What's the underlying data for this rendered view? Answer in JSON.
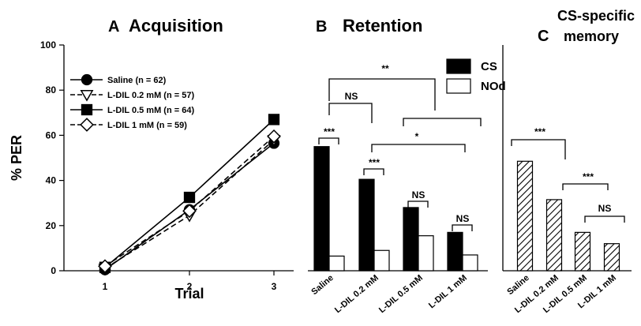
{
  "panels": {
    "a": {
      "letter": "A",
      "title": "Acquisition"
    },
    "b": {
      "letter": "B",
      "title": "Retention"
    },
    "c": {
      "letter": "C",
      "title_line1": "CS-specific",
      "title_line2": "memory"
    }
  },
  "chart_data": [
    {
      "id": "acquisition",
      "type": "line",
      "title": "Acquisition",
      "xlabel": "Trial",
      "ylabel": "% PER",
      "x": [
        1,
        2,
        3
      ],
      "ylim": [
        0,
        100
      ],
      "yticks": [
        0,
        20,
        40,
        60,
        80,
        100
      ],
      "legend_position": "top-left",
      "series": [
        {
          "name": "Saline (n = 62)",
          "values": [
            0.5,
            27,
            56.5
          ],
          "marker": "circle-filled",
          "dash": "solid"
        },
        {
          "name": "L-DIL 0.2 mM (n = 57)",
          "values": [
            1,
            24.5,
            58
          ],
          "marker": "triangle-down-open",
          "dash": "dashed"
        },
        {
          "name": "L-DIL 0.5 mM (n = 64)",
          "values": [
            1.5,
            32.5,
            67
          ],
          "marker": "square-filled",
          "dash": "solid"
        },
        {
          "name": "L-DIL 1 mM (n = 59)",
          "values": [
            2,
            26.5,
            59.5
          ],
          "marker": "diamond-open",
          "dash": "dashed"
        }
      ]
    },
    {
      "id": "retention",
      "type": "bar",
      "title": "Retention",
      "ylim": [
        0,
        100
      ],
      "categories": [
        "Saline",
        "L-DIL 0.2 mM",
        "L-DIL 0.5 mM",
        "L-DIL 1 mM"
      ],
      "legend_position": "top-right",
      "series": [
        {
          "name": "CS",
          "values": [
            55,
            40.5,
            28,
            17
          ],
          "color": "#000000"
        },
        {
          "name": "NOd",
          "values": [
            6.5,
            9,
            15.5,
            7
          ],
          "color": "#ffffff"
        }
      ],
      "annotations": [
        {
          "label": "***",
          "between": [
            "Saline CS",
            "Saline NOd"
          ]
        },
        {
          "label": "***",
          "between": [
            "L-DIL 0.2 mM CS",
            "L-DIL 0.2 mM NOd"
          ]
        },
        {
          "label": "NS",
          "between": [
            "L-DIL 0.5 mM CS",
            "L-DIL 0.5 mM NOd"
          ]
        },
        {
          "label": "NS",
          "between": [
            "L-DIL 1 mM CS",
            "L-DIL 1 mM NOd"
          ]
        },
        {
          "label": "NS",
          "between": [
            "Saline",
            "L-DIL 0.2 mM"
          ]
        },
        {
          "label": "*",
          "between": [
            "L-DIL 0.2 mM",
            "L-DIL 1 mM"
          ]
        },
        {
          "label": "**",
          "between": [
            "Saline + L-DIL 0.2 mM",
            "L-DIL 0.5 mM + L-DIL 1 mM"
          ]
        }
      ]
    },
    {
      "id": "cs_specific_memory",
      "type": "bar",
      "title": "CS-specific memory",
      "ylim": [
        0,
        100
      ],
      "categories": [
        "Saline",
        "L-DIL 0.2 mM",
        "L-DIL 0.5 mM",
        "L-DIL 1 mM"
      ],
      "values": [
        48.5,
        31.5,
        17,
        12
      ],
      "fill": "diagonal-hatch",
      "annotations": [
        {
          "label": "***",
          "between": [
            "Saline",
            "L-DIL 0.2 mM"
          ]
        },
        {
          "label": "***",
          "between": [
            "L-DIL 0.2 mM",
            "L-DIL 0.5 mM"
          ]
        },
        {
          "label": "NS",
          "between": [
            "L-DIL 0.5 mM",
            "L-DIL 1 mM"
          ]
        }
      ]
    }
  ]
}
